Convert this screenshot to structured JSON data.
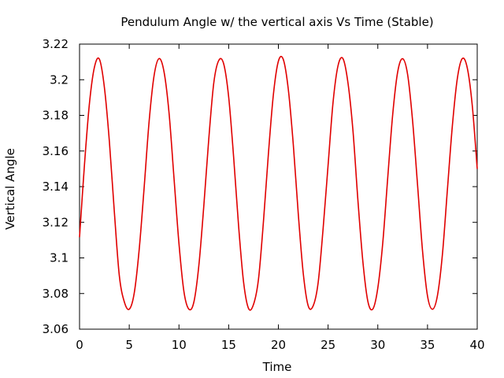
{
  "chart_data": {
    "type": "line",
    "title": "Pendulum Angle w/ the vertical axis Vs Time (Stable)",
    "xlabel": "Time",
    "ylabel": "Vertical Angle",
    "xlim": [
      0,
      40
    ],
    "ylim": [
      3.06,
      3.22
    ],
    "x_ticks": [
      0,
      5,
      10,
      15,
      20,
      25,
      30,
      35,
      40
    ],
    "x_tick_labels": [
      "0",
      "5",
      "10",
      "15",
      "20",
      "25",
      "30",
      "35",
      "40"
    ],
    "y_ticks": [
      3.06,
      3.08,
      3.1,
      3.12,
      3.14,
      3.16,
      3.18,
      3.2,
      3.22
    ],
    "y_tick_labels": [
      "3.06",
      "3.08",
      "3.1",
      "3.12",
      "3.14",
      "3.16",
      "3.18",
      "3.2",
      "3.22"
    ],
    "grid": false,
    "legend": "none",
    "series": [
      {
        "color": "#e00000",
        "x": [
          0,
          0.5,
          1.0,
          1.5,
          2.0,
          2.5,
          3.0,
          3.5,
          4.0,
          4.5,
          5.0,
          5.5,
          6.0,
          6.5,
          7.0,
          7.5,
          8.0,
          8.5,
          9.0,
          9.5,
          10.0,
          10.5,
          11.0,
          11.5,
          12.0,
          12.5,
          13.0,
          13.5,
          14.0,
          14.5,
          15.0,
          15.5,
          16.0,
          16.5,
          17.0,
          17.5,
          18.0,
          18.5,
          19.0,
          19.5,
          20.0,
          20.5,
          21.0,
          21.5,
          22.0,
          22.5,
          23.0,
          23.5,
          24.0,
          24.5,
          25.0,
          25.5,
          26.0,
          26.5,
          27.0,
          27.5,
          28.0,
          28.5,
          29.0,
          29.5,
          30.0,
          30.5,
          31.0,
          31.5,
          32.0,
          32.5,
          33.0,
          33.5,
          34.0,
          34.5,
          35.0,
          35.5,
          36.0,
          36.5,
          37.0,
          37.5,
          38.0,
          38.5,
          39.0,
          39.5,
          40.0
        ],
        "y": [
          3.1116,
          3.1526,
          3.1869,
          3.2071,
          3.2115,
          3.1957,
          3.1654,
          3.1259,
          3.0901,
          3.0754,
          3.0712,
          3.0802,
          3.1047,
          3.1396,
          3.1767,
          3.2024,
          3.2119,
          3.2044,
          3.1815,
          3.1449,
          3.1081,
          3.0811,
          3.0712,
          3.0752,
          3.0957,
          3.1292,
          3.1668,
          3.1981,
          3.2108,
          3.2089,
          3.1903,
          3.1565,
          3.1178,
          3.0864,
          3.0716,
          3.0739,
          3.0881,
          3.1205,
          3.1587,
          3.1918,
          3.2104,
          3.2113,
          3.1945,
          3.1636,
          3.1248,
          3.0914,
          3.0731,
          3.0731,
          3.0861,
          3.1165,
          3.1521,
          3.1874,
          3.2079,
          3.2118,
          3.1982,
          3.1715,
          3.1323,
          3.0978,
          3.0756,
          3.0713,
          3.0831,
          3.1085,
          3.1451,
          3.1806,
          3.2044,
          3.2118,
          3.2029,
          3.1769,
          3.1408,
          3.1039,
          3.0786,
          3.0712,
          3.0789,
          3.102,
          3.1383,
          3.1742,
          3.2007,
          3.2119,
          3.2066,
          3.1856,
          3.15
        ]
      }
    ]
  }
}
